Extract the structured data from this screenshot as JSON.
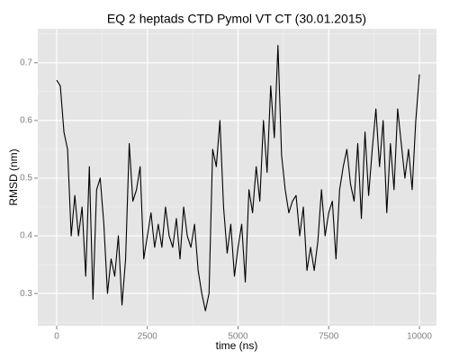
{
  "chart_data": {
    "type": "line",
    "title": "EQ 2 heptads CTD Pymol VT CT (30.01.2015)",
    "x_label": "time (ns)",
    "y_label": "RMSD (nm)",
    "x": [
      0,
      100,
      200,
      300,
      400,
      500,
      600,
      700,
      800,
      900,
      1000,
      1100,
      1200,
      1300,
      1400,
      1500,
      1600,
      1700,
      1800,
      1900,
      2000,
      2100,
      2200,
      2300,
      2400,
      2500,
      2600,
      2700,
      2800,
      2900,
      3000,
      3100,
      3200,
      3300,
      3400,
      3500,
      3600,
      3700,
      3800,
      3900,
      4000,
      4100,
      4200,
      4300,
      4400,
      4500,
      4600,
      4700,
      4800,
      4900,
      5000,
      5100,
      5200,
      5300,
      5400,
      5500,
      5600,
      5700,
      5800,
      5900,
      6000,
      6100,
      6200,
      6300,
      6400,
      6500,
      6600,
      6700,
      6800,
      6900,
      7000,
      7100,
      7200,
      7300,
      7400,
      7500,
      7600,
      7700,
      7800,
      7900,
      8000,
      8100,
      8200,
      8300,
      8400,
      8500,
      8600,
      8700,
      8800,
      8900,
      9000,
      9100,
      9200,
      9300,
      9400,
      9500,
      9600,
      9700,
      9800,
      9900,
      10000
    ],
    "series": [
      {
        "color": "#000000",
        "values": [
          0.67,
          0.66,
          0.58,
          0.55,
          0.4,
          0.47,
          0.4,
          0.45,
          0.33,
          0.52,
          0.29,
          0.48,
          0.5,
          0.42,
          0.3,
          0.36,
          0.33,
          0.4,
          0.28,
          0.36,
          0.56,
          0.46,
          0.48,
          0.52,
          0.36,
          0.4,
          0.44,
          0.38,
          0.42,
          0.38,
          0.45,
          0.4,
          0.38,
          0.43,
          0.36,
          0.45,
          0.4,
          0.38,
          0.42,
          0.34,
          0.3,
          0.27,
          0.3,
          0.55,
          0.52,
          0.6,
          0.45,
          0.37,
          0.42,
          0.33,
          0.38,
          0.42,
          0.32,
          0.48,
          0.44,
          0.52,
          0.46,
          0.6,
          0.51,
          0.66,
          0.57,
          0.73,
          0.54,
          0.48,
          0.44,
          0.46,
          0.47,
          0.4,
          0.45,
          0.34,
          0.38,
          0.34,
          0.39,
          0.48,
          0.4,
          0.44,
          0.46,
          0.36,
          0.48,
          0.52,
          0.55,
          0.49,
          0.46,
          0.56,
          0.43,
          0.58,
          0.47,
          0.55,
          0.62,
          0.52,
          0.6,
          0.44,
          0.56,
          0.48,
          0.62,
          0.56,
          0.5,
          0.55,
          0.48,
          0.6,
          0.68
        ]
      }
    ],
    "xlim": [
      -521,
      10471
    ],
    "xticks": [
      0,
      2500,
      5000,
      7500,
      10000
    ],
    "xminor": [
      1250,
      3750,
      6250,
      8750
    ],
    "ylim": [
      0.244,
      0.759
    ],
    "yticks": [
      0.3,
      0.4,
      0.5,
      0.6,
      0.7
    ],
    "yminor": [
      0.25,
      0.35,
      0.45,
      0.55,
      0.65,
      0.75
    ],
    "grid": true
  }
}
